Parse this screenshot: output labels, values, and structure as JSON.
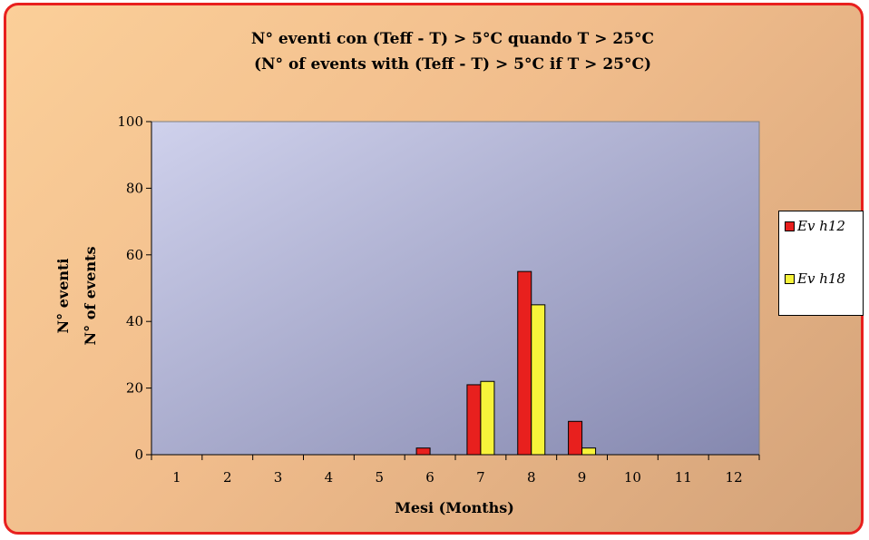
{
  "chart_data": {
    "type": "bar",
    "title": "N° eventi con (Teff - T) > 5°C quando T > 25°C",
    "subtitle": "(N° of events with (Teff - T) > 5°C if T > 25°C)",
    "xlabel": "Mesi (Months)",
    "ylabel_lines": [
      "N° eventi",
      "N° of events"
    ],
    "categories": [
      "1",
      "2",
      "3",
      "4",
      "5",
      "6",
      "7",
      "8",
      "9",
      "10",
      "11",
      "12"
    ],
    "series": [
      {
        "name": "Ev h12",
        "color": "#e8201e",
        "values": [
          0,
          0,
          0,
          0,
          0,
          2,
          21,
          55,
          10,
          0,
          0,
          0
        ]
      },
      {
        "name": "Ev h18",
        "color": "#f7f33a",
        "values": [
          0,
          0,
          0,
          0,
          0,
          0,
          22,
          45,
          2,
          0,
          0,
          0
        ]
      }
    ],
    "ylim": [
      0,
      100
    ],
    "yticks": [
      0,
      20,
      40,
      60,
      80,
      100
    ],
    "grid": false,
    "legend_position": "right",
    "plot_background": [
      "#cfd1ec",
      "#8588af"
    ]
  }
}
